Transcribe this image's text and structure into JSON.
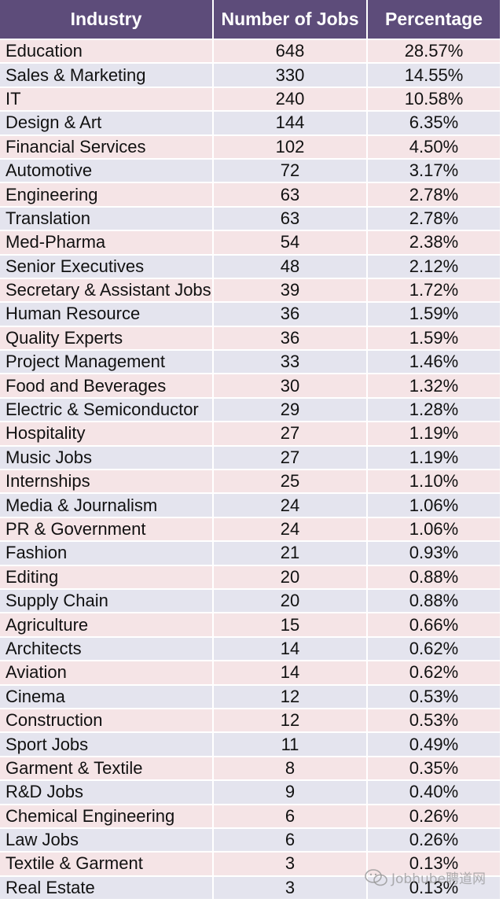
{
  "table": {
    "headers": [
      "Industry",
      "Number of Jobs",
      "Percentage"
    ],
    "rows": [
      [
        "Education",
        "648",
        "28.57%"
      ],
      [
        "Sales & Marketing",
        "330",
        "14.55%"
      ],
      [
        "IT",
        "240",
        "10.58%"
      ],
      [
        "Design & Art",
        "144",
        "6.35%"
      ],
      [
        "Financial Services",
        "102",
        "4.50%"
      ],
      [
        "Automotive",
        "72",
        "3.17%"
      ],
      [
        "Engineering",
        "63",
        "2.78%"
      ],
      [
        "Translation",
        "63",
        "2.78%"
      ],
      [
        "Med-Pharma",
        "54",
        "2.38%"
      ],
      [
        "Senior Executives",
        "48",
        "2.12%"
      ],
      [
        "Secretary & Assistant Jobs",
        "39",
        "1.72%"
      ],
      [
        "Human Resource",
        "36",
        "1.59%"
      ],
      [
        "Quality Experts",
        "36",
        "1.59%"
      ],
      [
        "Project Management",
        "33",
        "1.46%"
      ],
      [
        "Food and Beverages",
        "30",
        "1.32%"
      ],
      [
        "Electric & Semiconductor",
        "29",
        "1.28%"
      ],
      [
        "Hospitality",
        "27",
        "1.19%"
      ],
      [
        "Music Jobs",
        "27",
        "1.19%"
      ],
      [
        "Internships",
        "25",
        "1.10%"
      ],
      [
        "Media & Journalism",
        "24",
        "1.06%"
      ],
      [
        "PR & Government",
        "24",
        "1.06%"
      ],
      [
        "Fashion",
        "21",
        "0.93%"
      ],
      [
        "Editing",
        "20",
        "0.88%"
      ],
      [
        "Supply Chain",
        "20",
        "0.88%"
      ],
      [
        "Agriculture",
        "15",
        "0.66%"
      ],
      [
        "Architects",
        "14",
        "0.62%"
      ],
      [
        "Aviation",
        "14",
        "0.62%"
      ],
      [
        "Cinema",
        "12",
        "0.53%"
      ],
      [
        "Construction",
        "12",
        "0.53%"
      ],
      [
        "Sport Jobs",
        "11",
        "0.49%"
      ],
      [
        "Garment & Textile",
        "8",
        "0.35%"
      ],
      [
        "R&D Jobs",
        "9",
        "0.40%"
      ],
      [
        "Chemical Engineering",
        "6",
        "0.26%"
      ],
      [
        "Law Jobs",
        "6",
        "0.26%"
      ],
      [
        "Textile & Garment",
        "3",
        "0.13%"
      ],
      [
        "Real Estate",
        "3",
        "0.13%"
      ]
    ]
  },
  "chart_data": {
    "type": "table",
    "columns": [
      "Industry",
      "Number of Jobs",
      "Percentage"
    ],
    "categories": [
      "Education",
      "Sales & Marketing",
      "IT",
      "Design & Art",
      "Financial Services",
      "Automotive",
      "Engineering",
      "Translation",
      "Med-Pharma",
      "Senior Executives",
      "Secretary & Assistant Jobs",
      "Human Resource",
      "Quality Experts",
      "Project Management",
      "Food and Beverages",
      "Electric & Semiconductor",
      "Hospitality",
      "Music Jobs",
      "Internships",
      "Media & Journalism",
      "PR & Government",
      "Fashion",
      "Editing",
      "Supply Chain",
      "Agriculture",
      "Architects",
      "Aviation",
      "Cinema",
      "Construction",
      "Sport Jobs",
      "Garment & Textile",
      "R&D Jobs",
      "Chemical Engineering",
      "Law Jobs",
      "Textile & Garment",
      "Real Estate"
    ],
    "series": [
      {
        "name": "Number of Jobs",
        "values": [
          648,
          330,
          240,
          144,
          102,
          72,
          63,
          63,
          54,
          48,
          39,
          36,
          36,
          33,
          30,
          29,
          27,
          27,
          25,
          24,
          24,
          21,
          20,
          20,
          15,
          14,
          14,
          12,
          12,
          11,
          8,
          9,
          6,
          6,
          3,
          3
        ]
      },
      {
        "name": "Percentage",
        "values": [
          28.57,
          14.55,
          10.58,
          6.35,
          4.5,
          3.17,
          2.78,
          2.78,
          2.38,
          2.12,
          1.72,
          1.59,
          1.59,
          1.46,
          1.32,
          1.28,
          1.19,
          1.19,
          1.1,
          1.06,
          1.06,
          0.93,
          0.88,
          0.88,
          0.66,
          0.62,
          0.62,
          0.53,
          0.53,
          0.49,
          0.35,
          0.4,
          0.26,
          0.26,
          0.13,
          0.13
        ]
      }
    ]
  },
  "colors": {
    "header_bg": "#5d4c7a",
    "header_text": "#ffffff",
    "row_odd_bg": "#f5e4e6",
    "row_even_bg": "#e4e4ee"
  },
  "watermark": {
    "icon": "wechat-icon",
    "text": "Jobhube聘道网"
  }
}
